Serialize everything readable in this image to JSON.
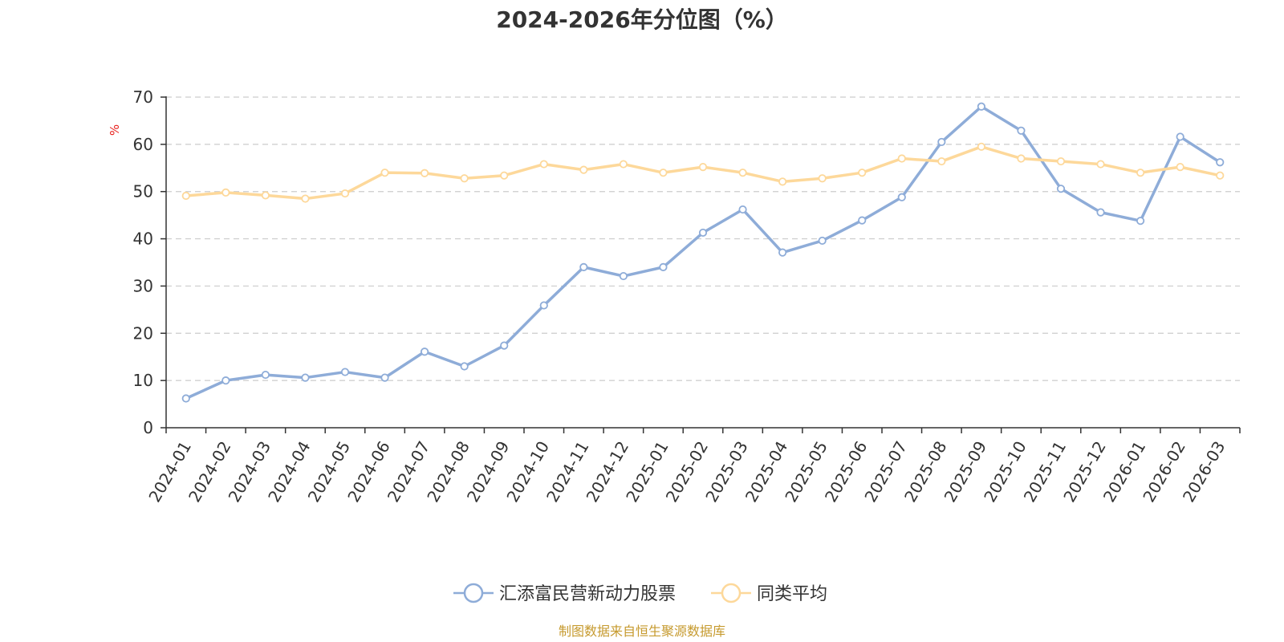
{
  "chart_data": {
    "type": "line",
    "title": "2024-2026年分位图（%）",
    "yunit": "%",
    "ylim": [
      0,
      70
    ],
    "yticks": [
      0,
      10,
      20,
      30,
      40,
      50,
      60,
      70
    ],
    "grid": true,
    "legend_position": "bottom-center",
    "categories": [
      "2024-01",
      "2024-02",
      "2024-03",
      "2024-04",
      "2024-05",
      "2024-06",
      "2024-07",
      "2024-08",
      "2024-09",
      "2024-10",
      "2024-11",
      "2024-12",
      "2025-01",
      "2025-02",
      "2025-03",
      "2025-04",
      "2025-05",
      "2025-06",
      "2025-07",
      "2025-08",
      "2025-09",
      "2025-10",
      "2025-11",
      "2025-12",
      "2026-01",
      "2026-02",
      "2026-03"
    ],
    "series": [
      {
        "name": "汇添富民营新动力股票",
        "color": "#8eacd8",
        "values": [
          6.2,
          10.0,
          11.2,
          10.6,
          11.8,
          10.6,
          16.1,
          13.0,
          17.4,
          25.9,
          34.0,
          32.1,
          34.0,
          41.3,
          46.2,
          37.1,
          39.6,
          43.9,
          48.8,
          60.5,
          68.0,
          62.9,
          50.6,
          45.6,
          43.8,
          61.6,
          56.2
        ]
      },
      {
        "name": "同类平均",
        "color": "#fdd89a",
        "values": [
          49.1,
          49.8,
          49.2,
          48.5,
          49.6,
          54.0,
          53.9,
          52.8,
          53.4,
          55.8,
          54.6,
          55.8,
          54.0,
          55.2,
          54.0,
          52.1,
          52.8,
          54.0,
          57.0,
          56.4,
          59.5,
          57.0,
          56.4,
          55.8,
          54.0,
          55.2,
          53.4
        ]
      }
    ]
  },
  "colors": {
    "text": "#333333",
    "grid": "#cccccc",
    "axis": "#333333",
    "yunit": "#e8211d",
    "source": "#c69a2e"
  },
  "footer": {
    "source": "制图数据来自恒生聚源数据库"
  }
}
